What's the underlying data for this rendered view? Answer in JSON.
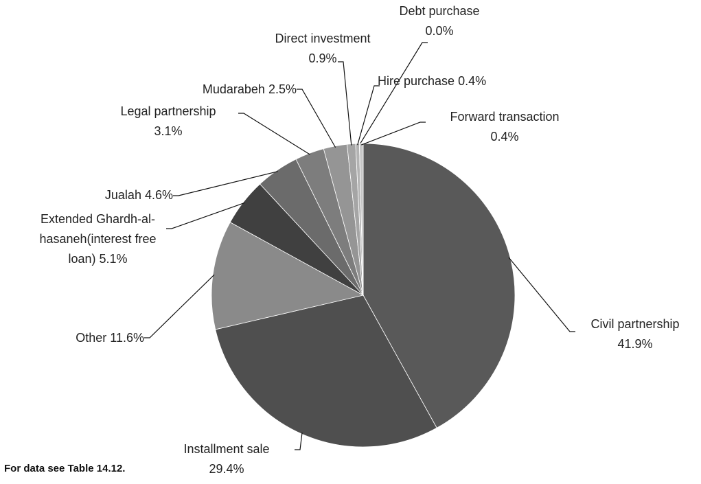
{
  "chart_data": {
    "type": "pie",
    "categories": [
      "Civil partnership",
      "Installment sale",
      "Other",
      "Extended Ghardh-al-hasaneh(interest free loan)",
      "Jualah",
      "Legal partnership",
      "Mudarabeh",
      "Direct investment",
      "Hire purchase",
      "Debt purchase",
      "Forward transaction"
    ],
    "values": [
      41.9,
      29.4,
      11.6,
      5.1,
      4.6,
      3.1,
      2.5,
      0.9,
      0.4,
      0.0,
      0.4
    ],
    "value_labels": [
      "41.9%",
      "29.4%",
      "11.6%",
      "5.1%",
      "4.6%",
      "3.1%",
      "2.5%",
      "0.9%",
      "0.4%",
      "0.0%",
      "0.4%"
    ],
    "colors": [
      "#595959",
      "#4f4f4f",
      "#8a8a8a",
      "#404040",
      "#6b6b6b",
      "#7d7d7d",
      "#959595",
      "#a5a5a5",
      "#b3b3b3",
      "#bdbdbd",
      "#c6c6c6"
    ],
    "note": "For data see Table 14.12."
  }
}
